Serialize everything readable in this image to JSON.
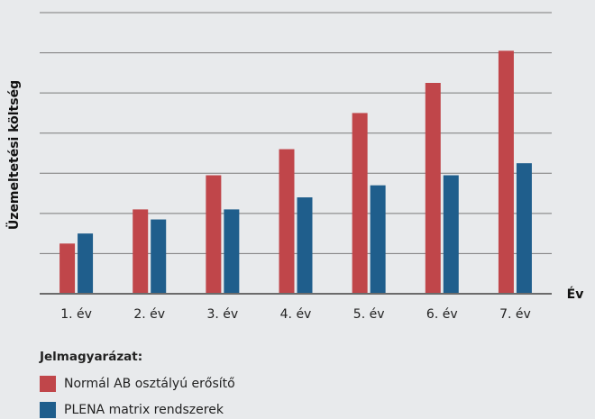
{
  "chart_data": {
    "type": "bar",
    "categories": [
      "1. év",
      "2. év",
      "3. év",
      "4. év",
      "5. év",
      "6. év",
      "7. év"
    ],
    "series": [
      {
        "name": "Normál AB osztályú erősítő",
        "color": "#c0464a",
        "values": [
          1.25,
          2.1,
          2.95,
          3.6,
          4.5,
          5.25,
          6.05
        ]
      },
      {
        "name": "PLENA matrix rendszerek",
        "color": "#1f5e8c",
        "values": [
          1.5,
          1.85,
          2.1,
          2.4,
          2.7,
          2.95,
          3.25
        ]
      }
    ],
    "ylim": [
      0,
      7
    ],
    "gridlines": 7,
    "xlabel": "Év",
    "ylabel": "Üzemeltetési költség",
    "grid": true,
    "legend_position": "bottom-left"
  },
  "legend": {
    "title": "Jelmagyarázat:"
  }
}
